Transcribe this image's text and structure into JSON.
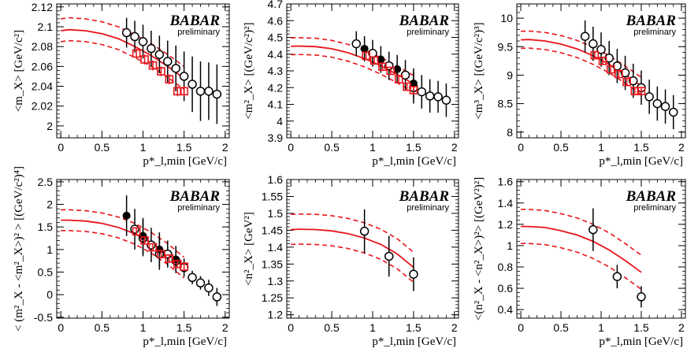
{
  "figure": {
    "brand": "BABAR",
    "brand_sub": "preliminary"
  },
  "chart_data": [
    {
      "type": "scatter",
      "title": "",
      "ylabel": "<m_X> [GeV/c²]",
      "xlabel": "p*_l,min [GeV/c]",
      "xlim": [
        -0.05,
        2.05
      ],
      "ylim": [
        1.988,
        2.123
      ],
      "yticks": [
        "2",
        "2.02",
        "2.04",
        "2.06",
        "2.08",
        "2.1",
        "2.12"
      ],
      "xticks": [
        "0",
        "0.5",
        "1",
        "1.5",
        "2"
      ],
      "ytick_values": [
        2.0,
        2.02,
        2.04,
        2.06,
        2.08,
        2.1,
        2.12
      ],
      "band": {
        "x": [
          0.0,
          0.1,
          0.3,
          0.5,
          0.7,
          0.9,
          1.1,
          1.3,
          1.5
        ],
        "center": [
          2.096,
          2.097,
          2.096,
          2.093,
          2.088,
          2.08,
          2.071,
          2.06,
          2.048
        ],
        "upper": [
          2.108,
          2.109,
          2.108,
          2.105,
          2.1,
          2.092,
          2.083,
          2.072,
          2.06
        ],
        "lower": [
          2.085,
          2.086,
          2.085,
          2.082,
          2.077,
          2.069,
          2.06,
          2.049,
          2.037
        ]
      },
      "series": [
        {
          "name": "open circles",
          "marker": "open-circle",
          "x": [
            0.8,
            0.9,
            1.0,
            1.1,
            1.2,
            1.3,
            1.4,
            1.5,
            1.6,
            1.7,
            1.8,
            1.9
          ],
          "y": [
            2.094,
            2.09,
            2.085,
            2.078,
            2.072,
            2.065,
            2.058,
            2.05,
            2.042,
            2.035,
            2.035,
            2.032
          ],
          "err": [
            0.015,
            0.016,
            0.017,
            0.018,
            0.019,
            0.021,
            0.023,
            0.025,
            0.028,
            0.03,
            0.029,
            0.03
          ]
        },
        {
          "name": "open squares",
          "marker": "open-square",
          "x": [
            0.92,
            1.02,
            1.12,
            1.22,
            1.32,
            1.42,
            1.5
          ],
          "y": [
            2.073,
            2.067,
            2.061,
            2.055,
            2.047,
            2.035,
            2.035
          ],
          "err": [
            0.005,
            0.005,
            0.005,
            0.005,
            0.005,
            0.005,
            0.005
          ]
        }
      ]
    },
    {
      "type": "scatter",
      "title": "",
      "ylabel": "<m²_X> [(GeV/c²)²]",
      "xlabel": "p*_l,min [GeV/c]",
      "xlim": [
        -0.05,
        2.05
      ],
      "ylim": [
        3.9,
        4.7
      ],
      "yticks": [
        "3.9",
        "4",
        "4.1",
        "4.2",
        "4.3",
        "4.4",
        "4.5",
        "4.6",
        "4.7"
      ],
      "xticks": [
        "0",
        "0.5",
        "1",
        "1.5",
        "2"
      ],
      "ytick_values": [
        3.9,
        4.0,
        4.1,
        4.2,
        4.3,
        4.4,
        4.5,
        4.6,
        4.7
      ],
      "band": {
        "x": [
          0.0,
          0.1,
          0.3,
          0.5,
          0.7,
          0.9,
          1.1,
          1.3,
          1.5
        ],
        "center": [
          4.447,
          4.448,
          4.445,
          4.432,
          4.408,
          4.374,
          4.33,
          4.279,
          4.222
        ],
        "upper": [
          4.497,
          4.498,
          4.495,
          4.482,
          4.458,
          4.424,
          4.38,
          4.329,
          4.272
        ],
        "lower": [
          4.397,
          4.398,
          4.395,
          4.382,
          4.358,
          4.324,
          4.28,
          4.229,
          4.172
        ]
      },
      "series": [
        {
          "name": "open circles",
          "marker": "open-circle",
          "x": [
            0.8,
            1.0,
            1.2,
            1.4,
            1.5,
            1.6,
            1.7,
            1.8,
            1.9
          ],
          "y": [
            4.462,
            4.405,
            4.33,
            4.275,
            4.2,
            4.175,
            4.15,
            4.145,
            4.125
          ],
          "err": [
            0.075,
            0.08,
            0.085,
            0.09,
            0.095,
            0.1,
            0.1,
            0.095,
            0.1
          ]
        },
        {
          "name": "full circles",
          "marker": "filled-circle",
          "x": [
            0.9,
            1.1,
            1.3,
            1.5
          ],
          "y": [
            4.432,
            4.368,
            4.31,
            4.225
          ],
          "err": [
            0.075,
            0.08,
            0.085,
            0.09
          ]
        },
        {
          "name": "open squares",
          "marker": "open-square",
          "x": [
            0.92,
            1.02,
            1.12,
            1.22,
            1.32,
            1.42,
            1.5
          ],
          "y": [
            4.39,
            4.362,
            4.325,
            4.3,
            4.25,
            4.205,
            4.185
          ],
          "err": [
            0.02,
            0.02,
            0.02,
            0.02,
            0.02,
            0.02,
            0.02
          ]
        }
      ]
    },
    {
      "type": "scatter",
      "title": "",
      "ylabel": "<m³_X> [(GeV/c²)³]",
      "xlabel": "p*_l,min [GeV/c]",
      "xlim": [
        -0.05,
        2.05
      ],
      "ylim": [
        7.9,
        10.25
      ],
      "yticks": [
        "8",
        "8.5",
        "9",
        "9.5",
        "10"
      ],
      "xticks": [
        "0",
        "0.5",
        "1",
        "1.5",
        "2"
      ],
      "ytick_values": [
        8.0,
        8.5,
        9.0,
        9.5,
        10.0
      ],
      "band": {
        "x": [
          0.0,
          0.1,
          0.3,
          0.5,
          0.7,
          0.9,
          1.1,
          1.3,
          1.5
        ],
        "center": [
          9.62,
          9.625,
          9.6,
          9.545,
          9.46,
          9.34,
          9.19,
          9.01,
          8.81
        ],
        "upper": [
          9.77,
          9.775,
          9.75,
          9.695,
          9.61,
          9.49,
          9.34,
          9.16,
          8.96
        ],
        "lower": [
          9.47,
          9.475,
          9.45,
          9.395,
          9.31,
          9.19,
          9.04,
          8.86,
          8.66
        ]
      },
      "series": [
        {
          "name": "open circles",
          "marker": "open-circle",
          "x": [
            0.8,
            0.9,
            1.0,
            1.1,
            1.2,
            1.3,
            1.4,
            1.5,
            1.6,
            1.7,
            1.8,
            1.9
          ],
          "y": [
            9.68,
            9.55,
            9.45,
            9.3,
            9.16,
            9.04,
            8.9,
            8.78,
            8.62,
            8.5,
            8.45,
            8.35
          ],
          "err": [
            0.28,
            0.3,
            0.3,
            0.3,
            0.3,
            0.3,
            0.3,
            0.3,
            0.3,
            0.3,
            0.3,
            0.3
          ]
        },
        {
          "name": "open squares",
          "marker": "open-square",
          "x": [
            0.92,
            1.02,
            1.12,
            1.22,
            1.32,
            1.42,
            1.5
          ],
          "y": [
            9.35,
            9.25,
            9.1,
            9.02,
            8.88,
            8.72,
            8.72
          ],
          "err": [
            0.07,
            0.07,
            0.07,
            0.07,
            0.07,
            0.07,
            0.07
          ]
        }
      ]
    },
    {
      "type": "scatter",
      "title": "",
      "ylabel": "< (m²_X - <m²_X>)² > [(GeV/c²)⁴]",
      "xlabel": "p*_l,min [GeV/c]",
      "xlim": [
        -0.05,
        2.05
      ],
      "ylim": [
        -0.52,
        2.55
      ],
      "yticks": [
        "-0.5",
        "0",
        "0.5",
        "1",
        "1.5",
        "2",
        "2.5"
      ],
      "xticks": [
        "0",
        "0.5",
        "1",
        "1.5",
        "2"
      ],
      "ytick_values": [
        -0.5,
        0.0,
        0.5,
        1.0,
        1.5,
        2.0,
        2.5
      ],
      "band": {
        "x": [
          0.0,
          0.1,
          0.3,
          0.5,
          0.7,
          0.9,
          1.1,
          1.3,
          1.5
        ],
        "center": [
          1.65,
          1.65,
          1.63,
          1.58,
          1.49,
          1.35,
          1.15,
          0.9,
          0.6
        ],
        "upper": [
          1.88,
          1.88,
          1.86,
          1.81,
          1.72,
          1.58,
          1.38,
          1.13,
          0.83
        ],
        "lower": [
          1.42,
          1.42,
          1.4,
          1.35,
          1.26,
          1.12,
          0.92,
          0.67,
          0.37
        ]
      },
      "series": [
        {
          "name": "open circles",
          "marker": "open-circle",
          "x": [
            0.9,
            1.0,
            1.1,
            1.2,
            1.3,
            1.4,
            1.5,
            1.6,
            1.7,
            1.8,
            1.9
          ],
          "y": [
            1.45,
            1.25,
            1.1,
            0.9,
            0.9,
            0.75,
            0.6,
            0.38,
            0.26,
            0.15,
            -0.05
          ],
          "err": [
            0.45,
            0.4,
            0.38,
            0.35,
            0.3,
            0.25,
            0.2,
            0.15,
            0.15,
            0.18,
            0.2
          ]
        },
        {
          "name": "full circles",
          "marker": "filled-circle",
          "x": [
            0.8,
            1.0,
            1.2,
            1.4
          ],
          "y": [
            1.75,
            1.3,
            1.0,
            0.78
          ],
          "err": [
            0.45,
            0.4,
            0.38,
            0.3
          ]
        },
        {
          "name": "open squares",
          "marker": "open-square",
          "x": [
            0.92,
            1.02,
            1.12,
            1.22,
            1.32,
            1.42,
            1.5
          ],
          "y": [
            1.4,
            1.2,
            1.05,
            0.9,
            0.8,
            0.68,
            0.62
          ],
          "err": [
            0.08,
            0.08,
            0.08,
            0.08,
            0.08,
            0.08,
            0.08
          ]
        }
      ]
    },
    {
      "type": "scatter",
      "title": "",
      "ylabel": "<n²_X> [GeV²]",
      "xlabel": "p*_l,min [GeV/c]",
      "xlim": [
        -0.05,
        2.05
      ],
      "ylim": [
        1.19,
        1.6
      ],
      "yticks": [
        "1.2",
        "1.25",
        "1.3",
        "1.35",
        "1.4",
        "1.45",
        "1.5",
        "1.55",
        "1.6"
      ],
      "xticks": [
        "0",
        "0.5",
        "1",
        "1.5",
        "2"
      ],
      "ytick_values": [
        1.2,
        1.25,
        1.3,
        1.35,
        1.4,
        1.45,
        1.5,
        1.55,
        1.6
      ],
      "band": {
        "x": [
          0.0,
          0.1,
          0.3,
          0.5,
          0.7,
          0.9,
          1.1,
          1.3,
          1.5
        ],
        "center": [
          1.452,
          1.453,
          1.452,
          1.448,
          1.44,
          1.427,
          1.408,
          1.38,
          1.34
        ],
        "upper": [
          1.497,
          1.498,
          1.497,
          1.493,
          1.485,
          1.472,
          1.453,
          1.425,
          1.385
        ],
        "lower": [
          1.408,
          1.409,
          1.408,
          1.404,
          1.396,
          1.383,
          1.364,
          1.336,
          1.296
        ]
      },
      "series": [
        {
          "name": "open circles",
          "marker": "open-circle",
          "x": [
            0.9,
            1.2,
            1.5
          ],
          "y": [
            1.447,
            1.373,
            1.32
          ],
          "err": [
            0.065,
            0.06,
            0.05
          ]
        }
      ]
    },
    {
      "type": "scatter",
      "title": "",
      "ylabel": "<(n²_X - <n²_X>)²> [(GeV²)²]",
      "xlabel": "p*_l,min [GeV/c]",
      "xlim": [
        -0.05,
        2.05
      ],
      "ylim": [
        0.32,
        1.62
      ],
      "yticks": [
        "0.4",
        "0.6",
        "0.8",
        "1",
        "1.2",
        "1.4",
        "1.6"
      ],
      "xticks": [
        "0",
        "0.5",
        "1",
        "1.5",
        "2"
      ],
      "ytick_values": [
        0.4,
        0.6,
        0.8,
        1.0,
        1.2,
        1.4,
        1.6
      ],
      "band": {
        "x": [
          0.0,
          0.1,
          0.3,
          0.5,
          0.7,
          0.9,
          1.1,
          1.3,
          1.5
        ],
        "center": [
          1.18,
          1.18,
          1.17,
          1.14,
          1.1,
          1.04,
          0.96,
          0.86,
          0.75
        ],
        "upper": [
          1.34,
          1.34,
          1.33,
          1.3,
          1.26,
          1.2,
          1.12,
          1.02,
          0.91
        ],
        "lower": [
          1.02,
          1.02,
          1.01,
          0.98,
          0.94,
          0.88,
          0.8,
          0.7,
          0.59
        ]
      },
      "series": [
        {
          "name": "open circles",
          "marker": "open-circle",
          "x": [
            0.9,
            1.2,
            1.5
          ],
          "y": [
            1.15,
            0.71,
            0.52
          ],
          "err": [
            0.2,
            0.11,
            0.1
          ]
        }
      ]
    }
  ]
}
